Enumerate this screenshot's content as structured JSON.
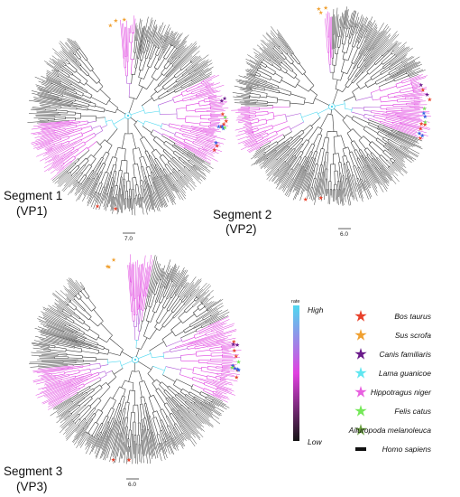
{
  "segments": [
    {
      "label_line1": "Segment 1",
      "label_line2": "(VP1)",
      "scale": "7.0"
    },
    {
      "label_line1": "Segment 2",
      "label_line2": "(VP2)",
      "scale": "6.0"
    },
    {
      "label_line1": "Segment 3",
      "label_line2": "(VP3)",
      "scale": "6.0"
    }
  ],
  "rate_legend": {
    "title": "rate",
    "high": "High",
    "low": "Low",
    "colors": {
      "high": "#4fd8f0",
      "mid": "#e040e0",
      "low": "#151515"
    }
  },
  "host_legend": [
    {
      "name": "Bos taurus",
      "color": "#e8402a",
      "marker": "star-icon"
    },
    {
      "name": "Sus scrofa",
      "color": "#f0a030",
      "marker": "star-icon"
    },
    {
      "name": "Canis familiaris",
      "color": "#6a1a8a",
      "marker": "star-icon"
    },
    {
      "name": "Lama guanicoe",
      "color": "#5fe6f0",
      "marker": "star-icon"
    },
    {
      "name": "Hippotragus niger",
      "color": "#e860e0",
      "marker": "star-icon"
    },
    {
      "name": "Felis catus",
      "color": "#74e858",
      "marker": "star-icon"
    },
    {
      "name": "Ailuropoda melanoleuca",
      "color": "#6aa040",
      "marker": "star-icon"
    },
    {
      "name": "Homo sapiens",
      "color": "#111111",
      "marker": "bar-icon"
    }
  ]
}
